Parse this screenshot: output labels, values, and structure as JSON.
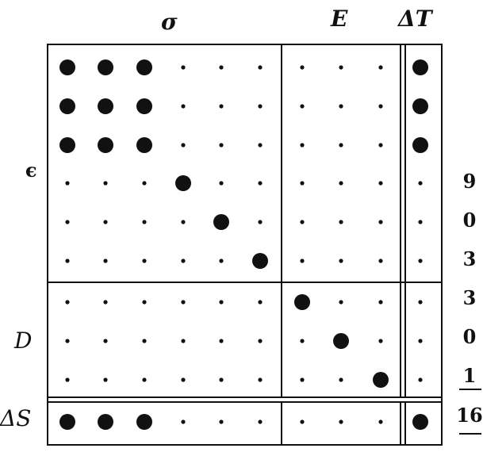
{
  "column_headers": {
    "sigma": "σ",
    "E": "E",
    "dT": "ΔT"
  },
  "row_labels": {
    "epsilon": "ϵ",
    "D": "D",
    "dS": "ΔS"
  },
  "counts": [
    "9",
    "0",
    "3",
    "3",
    "0",
    "1",
    "16"
  ],
  "matrix": {
    "rows": 10,
    "cols": 10,
    "large_dots": [
      [
        0,
        0
      ],
      [
        0,
        1
      ],
      [
        0,
        2
      ],
      [
        0,
        9
      ],
      [
        1,
        0
      ],
      [
        1,
        1
      ],
      [
        1,
        2
      ],
      [
        1,
        9
      ],
      [
        2,
        0
      ],
      [
        2,
        1
      ],
      [
        2,
        2
      ],
      [
        2,
        9
      ],
      [
        3,
        3
      ],
      [
        4,
        4
      ],
      [
        5,
        5
      ],
      [
        6,
        6
      ],
      [
        7,
        7
      ],
      [
        8,
        8
      ],
      [
        9,
        0
      ],
      [
        9,
        1
      ],
      [
        9,
        2
      ],
      [
        9,
        9
      ]
    ]
  },
  "colors": {
    "ink": "#111111",
    "background": "#ffffff"
  }
}
